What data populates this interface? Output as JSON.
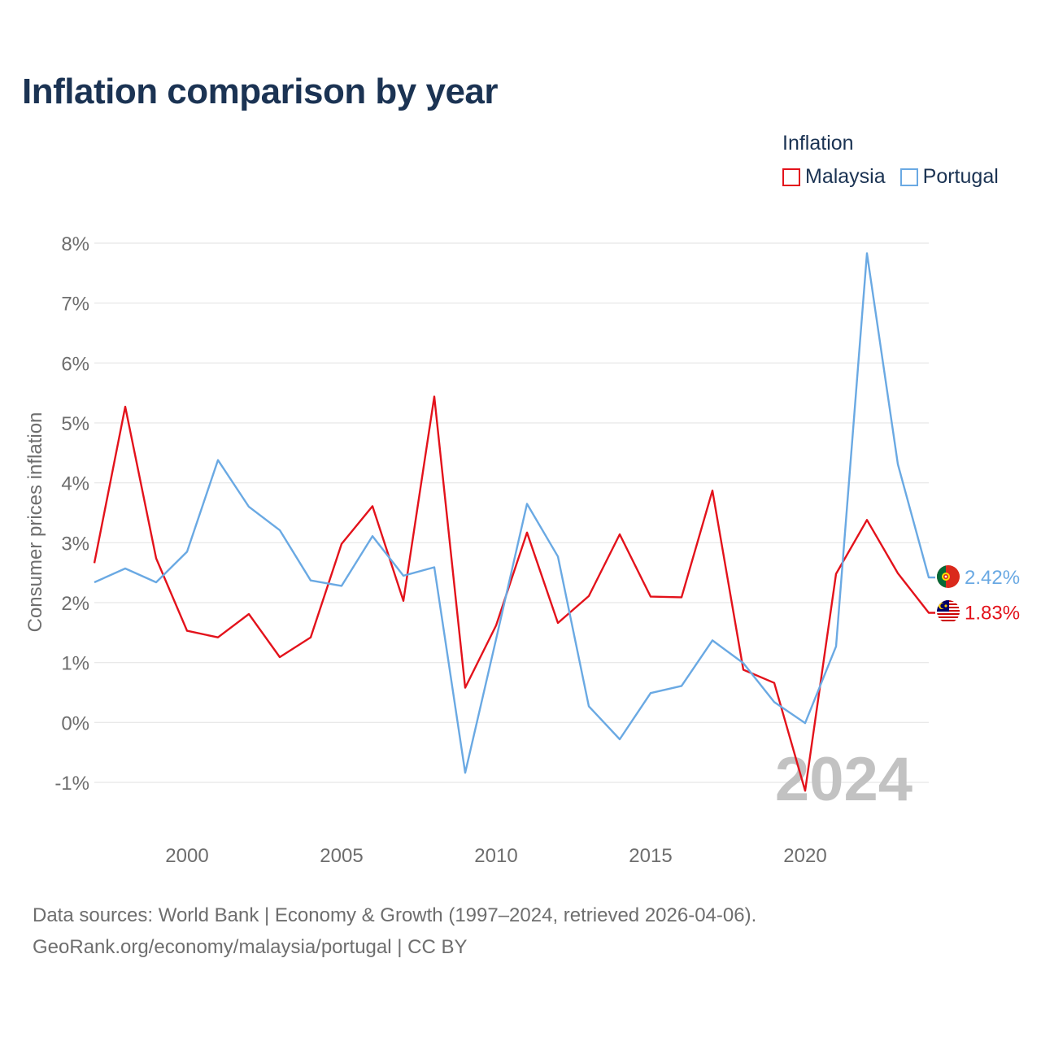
{
  "title": "Inflation comparison by year",
  "legend": {
    "title": "Inflation",
    "items": [
      {
        "name": "Malaysia",
        "color": "#e3121b"
      },
      {
        "name": "Portugal",
        "color": "#6aa9e3"
      }
    ]
  },
  "year_watermark": "2024",
  "source": {
    "line1": "Data sources: World Bank | Economy & Growth (1997–2024, retrieved 2026-04-06).",
    "line2": "GeoRank.org/economy/malaysia/portugal | CC BY"
  },
  "chart_data": {
    "type": "line",
    "title": "Inflation comparison by year",
    "xlabel": "",
    "ylabel": "Consumer prices inflation",
    "x": [
      1997,
      1998,
      1999,
      2000,
      2001,
      2002,
      2003,
      2004,
      2005,
      2006,
      2007,
      2008,
      2009,
      2010,
      2011,
      2012,
      2013,
      2014,
      2015,
      2016,
      2017,
      2018,
      2019,
      2020,
      2021,
      2022,
      2023,
      2024
    ],
    "xlim": [
      1997,
      2024
    ],
    "ylim": [
      -1,
      8
    ],
    "x_ticks": [
      2000,
      2005,
      2010,
      2015,
      2020
    ],
    "y_ticks": [
      -1,
      0,
      1,
      2,
      3,
      4,
      5,
      6,
      7,
      8
    ],
    "y_tick_labels": [
      "-1%",
      "0%",
      "1%",
      "2%",
      "3%",
      "4%",
      "5%",
      "6%",
      "7%",
      "8%"
    ],
    "series": [
      {
        "name": "Malaysia",
        "color": "#e3121b",
        "values": [
          2.66,
          5.27,
          2.74,
          1.53,
          1.42,
          1.81,
          1.09,
          1.42,
          2.98,
          3.61,
          2.03,
          5.44,
          0.58,
          1.62,
          3.17,
          1.66,
          2.11,
          3.14,
          2.1,
          2.09,
          3.87,
          0.88,
          0.66,
          -1.14,
          2.48,
          3.38,
          2.49,
          1.83
        ],
        "end_label": "1.83%",
        "flag_icon": "malaysia-flag-icon"
      },
      {
        "name": "Portugal",
        "color": "#6aa9e3",
        "values": [
          2.34,
          2.57,
          2.34,
          2.85,
          4.38,
          3.6,
          3.21,
          2.37,
          2.28,
          3.11,
          2.45,
          2.59,
          -0.84,
          1.39,
          3.65,
          2.77,
          0.27,
          -0.28,
          0.49,
          0.61,
          1.37,
          0.99,
          0.34,
          -0.01,
          1.27,
          7.83,
          4.31,
          2.42
        ],
        "end_label": "2.42%",
        "flag_icon": "portugal-flag-icon"
      }
    ]
  }
}
